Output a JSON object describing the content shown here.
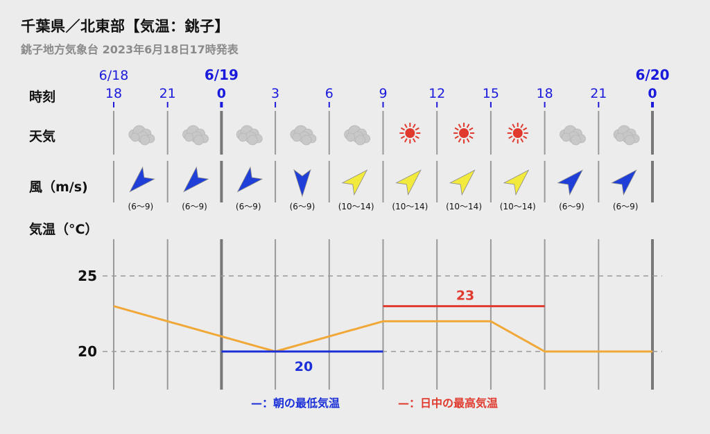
{
  "header": {
    "title": "千葉県／北東部【気温：銚子】",
    "subtitle": "銚子地方気象台 2023年6月18日17時発表"
  },
  "rows": {
    "time_label": "時刻",
    "weather_label": "天気",
    "wind_label": "風（m/s)",
    "temp_label": "気温（°C）"
  },
  "dates": [
    {
      "label": "6/18",
      "bold": false
    },
    {
      "label": "6/19",
      "bold": true
    },
    {
      "label": "6/20",
      "bold": true
    }
  ],
  "hours": [
    "18",
    "21",
    "0",
    "3",
    "6",
    "9",
    "12",
    "15",
    "18",
    "21",
    "0"
  ],
  "weather": [
    "cloudy",
    "cloudy",
    "cloudy",
    "cloudy",
    "cloudy",
    "sunny",
    "sunny",
    "sunny",
    "cloudy",
    "cloudy"
  ],
  "wind": [
    {
      "direction": "NE",
      "speed": "(6〜9)",
      "color": "#1f3fd8"
    },
    {
      "direction": "NE",
      "speed": "(6〜9)",
      "color": "#1f3fd8"
    },
    {
      "direction": "NE",
      "speed": "(6〜9)",
      "color": "#1f3fd8"
    },
    {
      "direction": "N",
      "speed": "(6〜9)",
      "color": "#1f3fd8"
    },
    {
      "direction": "SW",
      "speed": "(10〜14)",
      "color": "#f2ea3c"
    },
    {
      "direction": "SW",
      "speed": "(10〜14)",
      "color": "#f2ea3c"
    },
    {
      "direction": "SW",
      "speed": "(10〜14)",
      "color": "#f2ea3c"
    },
    {
      "direction": "SW",
      "speed": "(10〜14)",
      "color": "#f2ea3c"
    },
    {
      "direction": "SW",
      "speed": "(6〜9)",
      "color": "#1f3fd8"
    },
    {
      "direction": "SW",
      "speed": "(6〜9)",
      "color": "#1f3fd8"
    }
  ],
  "legend": {
    "min_label": "—：朝の最低気温",
    "max_label": "—：日中の最高気温"
  },
  "colors": {
    "date_blue": "#1a1adc",
    "temp_line": "#f0a838",
    "min_line": "#1a2fd8",
    "max_line": "#e03a2e",
    "sun": "#e03a2e",
    "cloud": "#c8c8c8"
  },
  "chart_data": {
    "type": "line",
    "x": [
      "6/18 18",
      "6/18 21",
      "6/19 0",
      "6/19 3",
      "6/19 6",
      "6/19 9",
      "6/19 12",
      "6/19 15",
      "6/19 18",
      "6/19 21",
      "6/20 0"
    ],
    "series": [
      {
        "values": [
          23,
          22,
          21,
          20,
          21,
          22,
          22,
          22,
          20,
          20,
          20
        ]
      }
    ],
    "min_temp": {
      "value": 20,
      "label": "20",
      "from": "6/19 0",
      "to": "6/19 9"
    },
    "max_temp": {
      "value": 23,
      "label": "23",
      "from": "6/19 9",
      "to": "6/19 18"
    },
    "yticks": [
      "25",
      "20"
    ],
    "ylim": [
      17.5,
      27.5
    ],
    "grid": true
  }
}
